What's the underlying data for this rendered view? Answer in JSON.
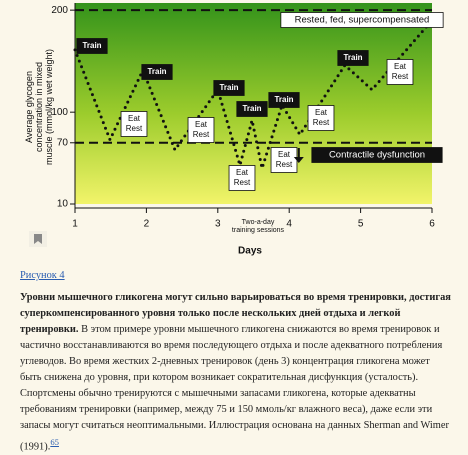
{
  "chart_data": {
    "type": "line",
    "y_label": "Average glycogen concentration in mixed muscle (mmol/kg wet weight)",
    "x_label": "Days",
    "x": [
      1,
      1.49,
      1.95,
      2.4,
      3.0,
      3.31,
      3.48,
      3.62,
      3.9,
      4.15,
      4.78,
      5.16,
      6.0
    ],
    "series": [
      {
        "color": "#111111",
        "values": [
          161,
          73,
          141,
          63,
          122,
          48,
          92,
          45,
          107,
          78,
          146,
          122,
          190
        ]
      }
    ],
    "xlim": [
      1,
      6
    ],
    "xticks": [
      1,
      2,
      3,
      4,
      5,
      6
    ],
    "ylim": [
      10,
      207
    ],
    "yticks": [
      10,
      70,
      100,
      200
    ],
    "reference_lines": [
      200,
      70
    ],
    "annotations": [
      {
        "lines": [
          "Train"
        ]
      },
      {
        "lines": [
          "Train"
        ]
      },
      {
        "lines": [
          "Train"
        ]
      },
      {
        "lines": [
          "Train"
        ]
      },
      {
        "lines": [
          "Train"
        ]
      },
      {
        "lines": [
          "Train"
        ]
      },
      {
        "lines": [
          "Eat",
          "Rest"
        ]
      },
      {
        "lines": [
          "Eat",
          "Rest"
        ]
      },
      {
        "lines": [
          "Eat",
          "Rest"
        ]
      },
      {
        "lines": [
          "Eat",
          "Rest"
        ]
      },
      {
        "lines": [
          "Eat",
          "Rest"
        ]
      },
      {
        "lines": [
          "Eat",
          "Rest"
        ]
      },
      {
        "lines": [
          "Rested, fed, supercompensated"
        ]
      },
      {
        "lines": [
          "Contractile dysfunction"
        ]
      },
      {
        "lines": [
          "Two-a-day",
          "training sessions"
        ]
      }
    ]
  },
  "document": {
    "figure_link": "Рисунок 4",
    "bold_text": "Уровни мышечного гликогена могут сильно варьироваться во время тренировки, достигая суперкомпенсированного уровня только после нескольких дней отдыха и легкой тренировки.",
    "body_text": "В этом примере уровни мышечного гликогена снижаются во время тренировок и частично восстанавливаются во время последующего отдыха и после адекватного потребления углеводов. Во время жестких 2-дневных тренировок (день 3) концентрация гликогена может быть снижена до уровня, при котором возникает сократительная дисфункция (усталость). Спортсмены обычно тренируются с мышечными запасами гликогена, которые адекватны требованиям тренировки (например, между 75 и 150 ммоль/кг влажного веса), даже если эти запасы могут считаться неоптимальными. Иллюстрация основана на данных Sherman and Wimer (1991).",
    "reference": "65"
  }
}
